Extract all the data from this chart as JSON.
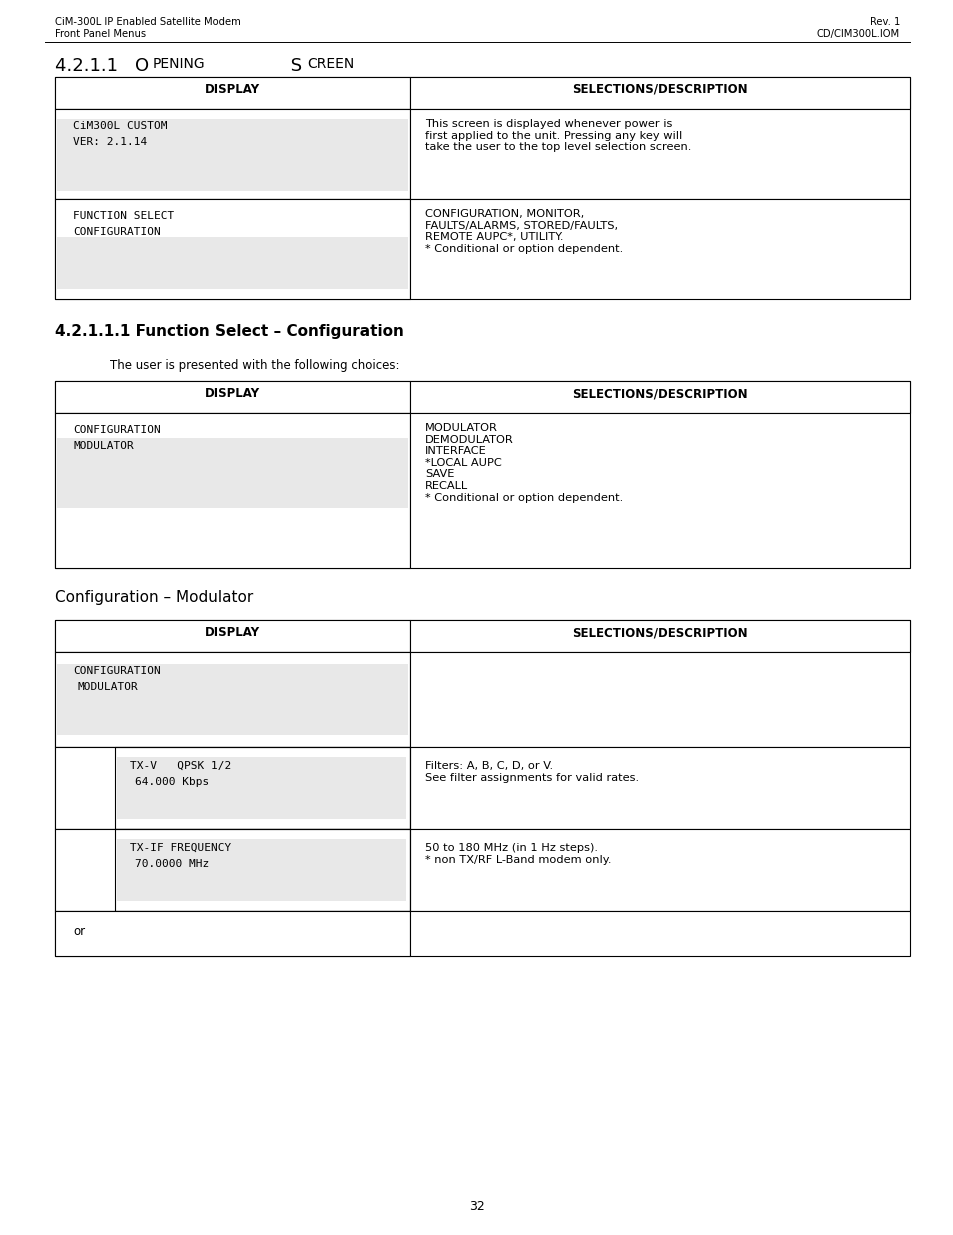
{
  "header_left_line1": "CiM-300L IP Enabled Satellite Modem",
  "header_left_line2": "Front Panel Menus",
  "header_right_line1": "Rev. 1",
  "header_right_line2": "CD/CIM300L.IOM",
  "section1_title": "4.2.1.1 O",
  "section1_title_rest": "PENING",
  "section1_title_end": " S",
  "section1_title_end2": "CREEN",
  "section2_title": "4.2.1.1.1 Function Select – Configuration",
  "section2_subtitle": "The user is presented with the following choices:",
  "section3_title": "Configuration – Modulator",
  "page_number": "32",
  "table1_col1_header": "DISPLAY",
  "table1_col2_header": "SELECTIONS/DESCRIPTION",
  "table1_row1_display": "CiM300L CUSTOM\nVER: 2.1.14",
  "table1_row1_desc": "This screen is displayed whenever power is\nfirst applied to the unit. Pressing any key will\ntake the user to the top level selection screen.",
  "table1_row2_display": "FUNCTION SELECT\nCONFIGURATION",
  "table1_row2_desc": "CONFIGURATION, MONITOR,\nFAULTS/ALARMS, STORED/FAULTS,\nREMOTE AUPC*, UTILITY.\n* Conditional or option dependent.",
  "table2_col1_header": "DISPLAY",
  "table2_col2_header": "SELECTIONS/DESCRIPTION",
  "table2_row1_display": "CONFIGURATION\nMODULATOR",
  "table2_row1_desc": "MODULATOR\nDEMODULATOR\nINTERFACE\n*LOCAL AUPC\nSAVE\nRECALL\n* Conditional or option dependent.",
  "table3_col1_header": "DISPLAY",
  "table3_col2_header": "SELECTIONS/DESCRIPTION",
  "table3_row1_display": "CONFIGURATION\n MODULATOR",
  "table3_row1_desc": "",
  "table3_row2_display": "TX-V   QPSK 1/2\n  64.000 Kbps",
  "table3_row2_desc": "Filters: A, B, C, D, or V.\nSee filter assignments for valid rates.",
  "table3_row3_display": "TX-IF FREQUENCY\n  70.0000 MHz",
  "table3_row3_desc": "50 to 180 MHz (in 1 Hz steps).\n* non TX/RF L-Band modem only.",
  "table3_row4_display": "or",
  "table3_row4_desc": "",
  "bg_color": "#ffffff",
  "cell_bg": "#e8e8e8",
  "table_border": "#000000",
  "header_font_size": 7.5,
  "body_font_size": 8.5,
  "mono_font_size": 7.5
}
